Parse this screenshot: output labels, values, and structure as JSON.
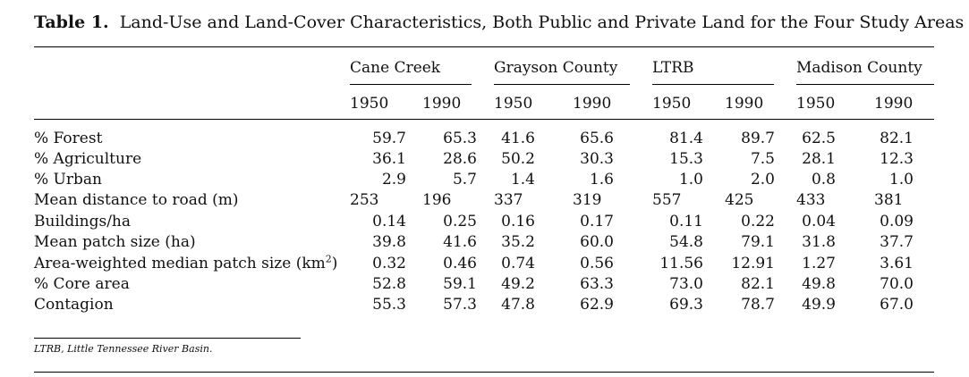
{
  "table": {
    "label": "Table 1.",
    "caption": "Land-Use and Land-Cover Characteristics, Both Public and Private Land for the Four Study Areas",
    "groups": [
      "Cane Creek",
      "Grayson County",
      "LTRB",
      "Madison County"
    ],
    "years": [
      "1950",
      "1990",
      "1950",
      "1990",
      "1950",
      "1990",
      "1950",
      "1990"
    ],
    "rows": [
      {
        "label": "% Forest",
        "values": [
          "59.7",
          "65.3",
          "41.6",
          "65.6",
          "81.4",
          "89.7",
          "62.5",
          "82.1"
        ]
      },
      {
        "label": "% Agriculture",
        "values": [
          "36.1",
          "28.6",
          "50.2",
          "30.3",
          "15.3",
          "7.5",
          "28.1",
          "12.3"
        ]
      },
      {
        "label": "% Urban",
        "values": [
          "2.9",
          "5.7",
          "1.4",
          "1.6",
          "1.0",
          "2.0",
          "0.8",
          "1.0"
        ]
      },
      {
        "label": "Mean distance to road (m)",
        "values": [
          "253",
          "196",
          "337",
          "319",
          "557",
          "425",
          "433",
          "381"
        ]
      },
      {
        "label": "Buildings/ha",
        "values": [
          "0.14",
          "0.25",
          "0.16",
          "0.17",
          "0.11",
          "0.22",
          "0.04",
          "0.09"
        ]
      },
      {
        "label": "Mean patch size (ha)",
        "values": [
          "39.8",
          "41.6",
          "35.2",
          "60.0",
          "54.8",
          "79.1",
          "31.8",
          "37.7"
        ]
      },
      {
        "label": "Area-weighted median patch size (km",
        "label_sup": "2",
        "label_tail": ")",
        "values": [
          "0.32",
          "0.46",
          "0.74",
          "0.56",
          "11.56",
          "12.91",
          "1.27",
          "3.61"
        ]
      },
      {
        "label": "% Core area",
        "values": [
          "52.8",
          "59.1",
          "49.2",
          "63.3",
          "73.0",
          "82.1",
          "49.8",
          "70.0"
        ]
      },
      {
        "label": "Contagion",
        "values": [
          "55.3",
          "57.3",
          "47.8",
          "62.9",
          "69.3",
          "78.7",
          "49.9",
          "67.0"
        ]
      }
    ],
    "footnote": "LTRB, Little Tennessee River Basin."
  }
}
